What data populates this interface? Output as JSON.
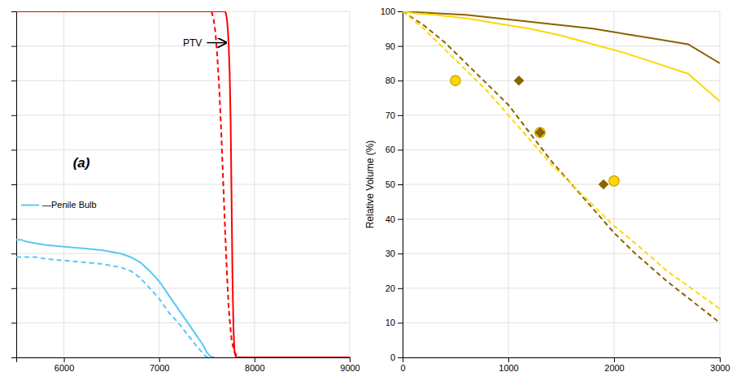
{
  "chart_data": [
    {
      "type": "line",
      "series": [
        {
          "x": [
            5500,
            7680,
            7690,
            7700,
            7710,
            7720,
            7730,
            7740,
            7750,
            7760,
            7770,
            7780,
            7790,
            7800,
            7810,
            7820,
            7830,
            9000
          ],
          "values": [
            100,
            100,
            100,
            99.5,
            98,
            95,
            90,
            82,
            68,
            45,
            22,
            8,
            2,
            0.5,
            0.1,
            0,
            0,
            0
          ],
          "color": "#FF0000",
          "line_style": "solid"
        },
        {
          "x": [
            5500,
            7550,
            7570,
            7590,
            7610,
            7630,
            7650,
            7670,
            7690,
            7710,
            7730,
            7760,
            7790,
            7820,
            7850,
            9000
          ],
          "values": [
            100,
            100,
            98,
            94,
            87,
            78,
            66,
            52,
            38,
            25,
            14,
            5,
            1.5,
            0.3,
            0,
            0
          ],
          "color": "#FF0000",
          "line_style": "dashed"
        },
        {
          "name": "—Penile Bulb",
          "x": [
            5500,
            5550,
            5600,
            5700,
            5800,
            6000,
            6200,
            6400,
            6600,
            6700,
            6800,
            6900,
            7000,
            7100,
            7200,
            7300,
            7400,
            7450,
            7480,
            7500,
            7520,
            7540,
            7560,
            7580
          ],
          "values": [
            34,
            34,
            33.5,
            33,
            32.5,
            32,
            31.5,
            31,
            30,
            29,
            27.5,
            25,
            22,
            18,
            14,
            10,
            6,
            4,
            2.5,
            1.5,
            0.8,
            0.3,
            0.1,
            0
          ],
          "color": "#5BC8F5",
          "line_style": "solid"
        },
        {
          "x": [
            5500,
            5600,
            5700,
            5800,
            6000,
            6200,
            6400,
            6600,
            6700,
            6800,
            6900,
            7000,
            7100,
            7200,
            7300,
            7400,
            7450,
            7480,
            7500,
            7520
          ],
          "values": [
            29,
            29,
            29,
            28.5,
            28,
            27.5,
            27,
            26,
            25,
            23,
            20,
            17,
            13,
            10,
            6.5,
            3,
            1.5,
            0.5,
            0.1,
            0
          ],
          "color": "#5BC8F5",
          "line_style": "dashed"
        }
      ],
      "xlim": [
        5500,
        9000
      ],
      "ylim": [
        0,
        100
      ],
      "xticks": [
        6000,
        7000,
        8000,
        9000
      ],
      "yticks": [
        0,
        10,
        20,
        30,
        40,
        50,
        60,
        70,
        80,
        90,
        100
      ],
      "tick_labels": "x",
      "grid": true,
      "legend": "left",
      "annotations": [
        {
          "text": "PTV"
        },
        {
          "text": "(a)"
        }
      ]
    },
    {
      "type": "line",
      "ylabel": "Relative Volume (%)",
      "series": [
        {
          "x": [
            0,
            100,
            300,
            600,
            900,
            1200,
            1500,
            1800,
            2100,
            2400,
            2700,
            3000
          ],
          "values": [
            100,
            99.8,
            99.5,
            99,
            98,
            97,
            96,
            95,
            93.5,
            92,
            90.5,
            85
          ],
          "color": "#8B6200",
          "line_style": "solid"
        },
        {
          "x": [
            0,
            100,
            300,
            600,
            900,
            1200,
            1500,
            1800,
            2100,
            2400,
            2700,
            3000
          ],
          "values": [
            100,
            99.5,
            99,
            98,
            96.5,
            95,
            93,
            90.5,
            88,
            85,
            82,
            74
          ],
          "color": "#FFD700",
          "line_style": "solid"
        },
        {
          "x": [
            0,
            200,
            400,
            600,
            800,
            1000,
            1200,
            1400,
            1600,
            1800,
            2000,
            2200,
            2500,
            3000
          ],
          "values": [
            100,
            96,
            91,
            85,
            79,
            73,
            65,
            57,
            50,
            43,
            36,
            30,
            22,
            10
          ],
          "color": "#8B6200",
          "line_style": "dashed"
        },
        {
          "x": [
            0,
            200,
            400,
            600,
            800,
            1000,
            1200,
            1400,
            1600,
            1800,
            2000,
            2200,
            2500,
            3000
          ],
          "values": [
            100,
            95,
            89,
            83,
            77,
            70,
            63,
            56,
            50,
            44,
            38,
            33,
            25,
            14
          ],
          "color": "#FFD700",
          "line_style": "dashed"
        },
        {
          "type": "scatter",
          "marker": "circle",
          "x": [
            500,
            1300,
            2000
          ],
          "values": [
            80,
            65,
            51
          ],
          "color": "#FFD700"
        },
        {
          "type": "scatter",
          "marker": "diamond",
          "x": [
            1100,
            1300,
            1900
          ],
          "values": [
            80,
            65,
            50
          ],
          "color": "#8B6200"
        }
      ],
      "xlim": [
        0,
        3000
      ],
      "ylim": [
        0,
        100
      ],
      "xticks": [
        0,
        1000,
        2000,
        3000
      ],
      "yticks": [
        0,
        10,
        20,
        30,
        40,
        50,
        60,
        70,
        80,
        90,
        100
      ],
      "grid": true
    }
  ]
}
